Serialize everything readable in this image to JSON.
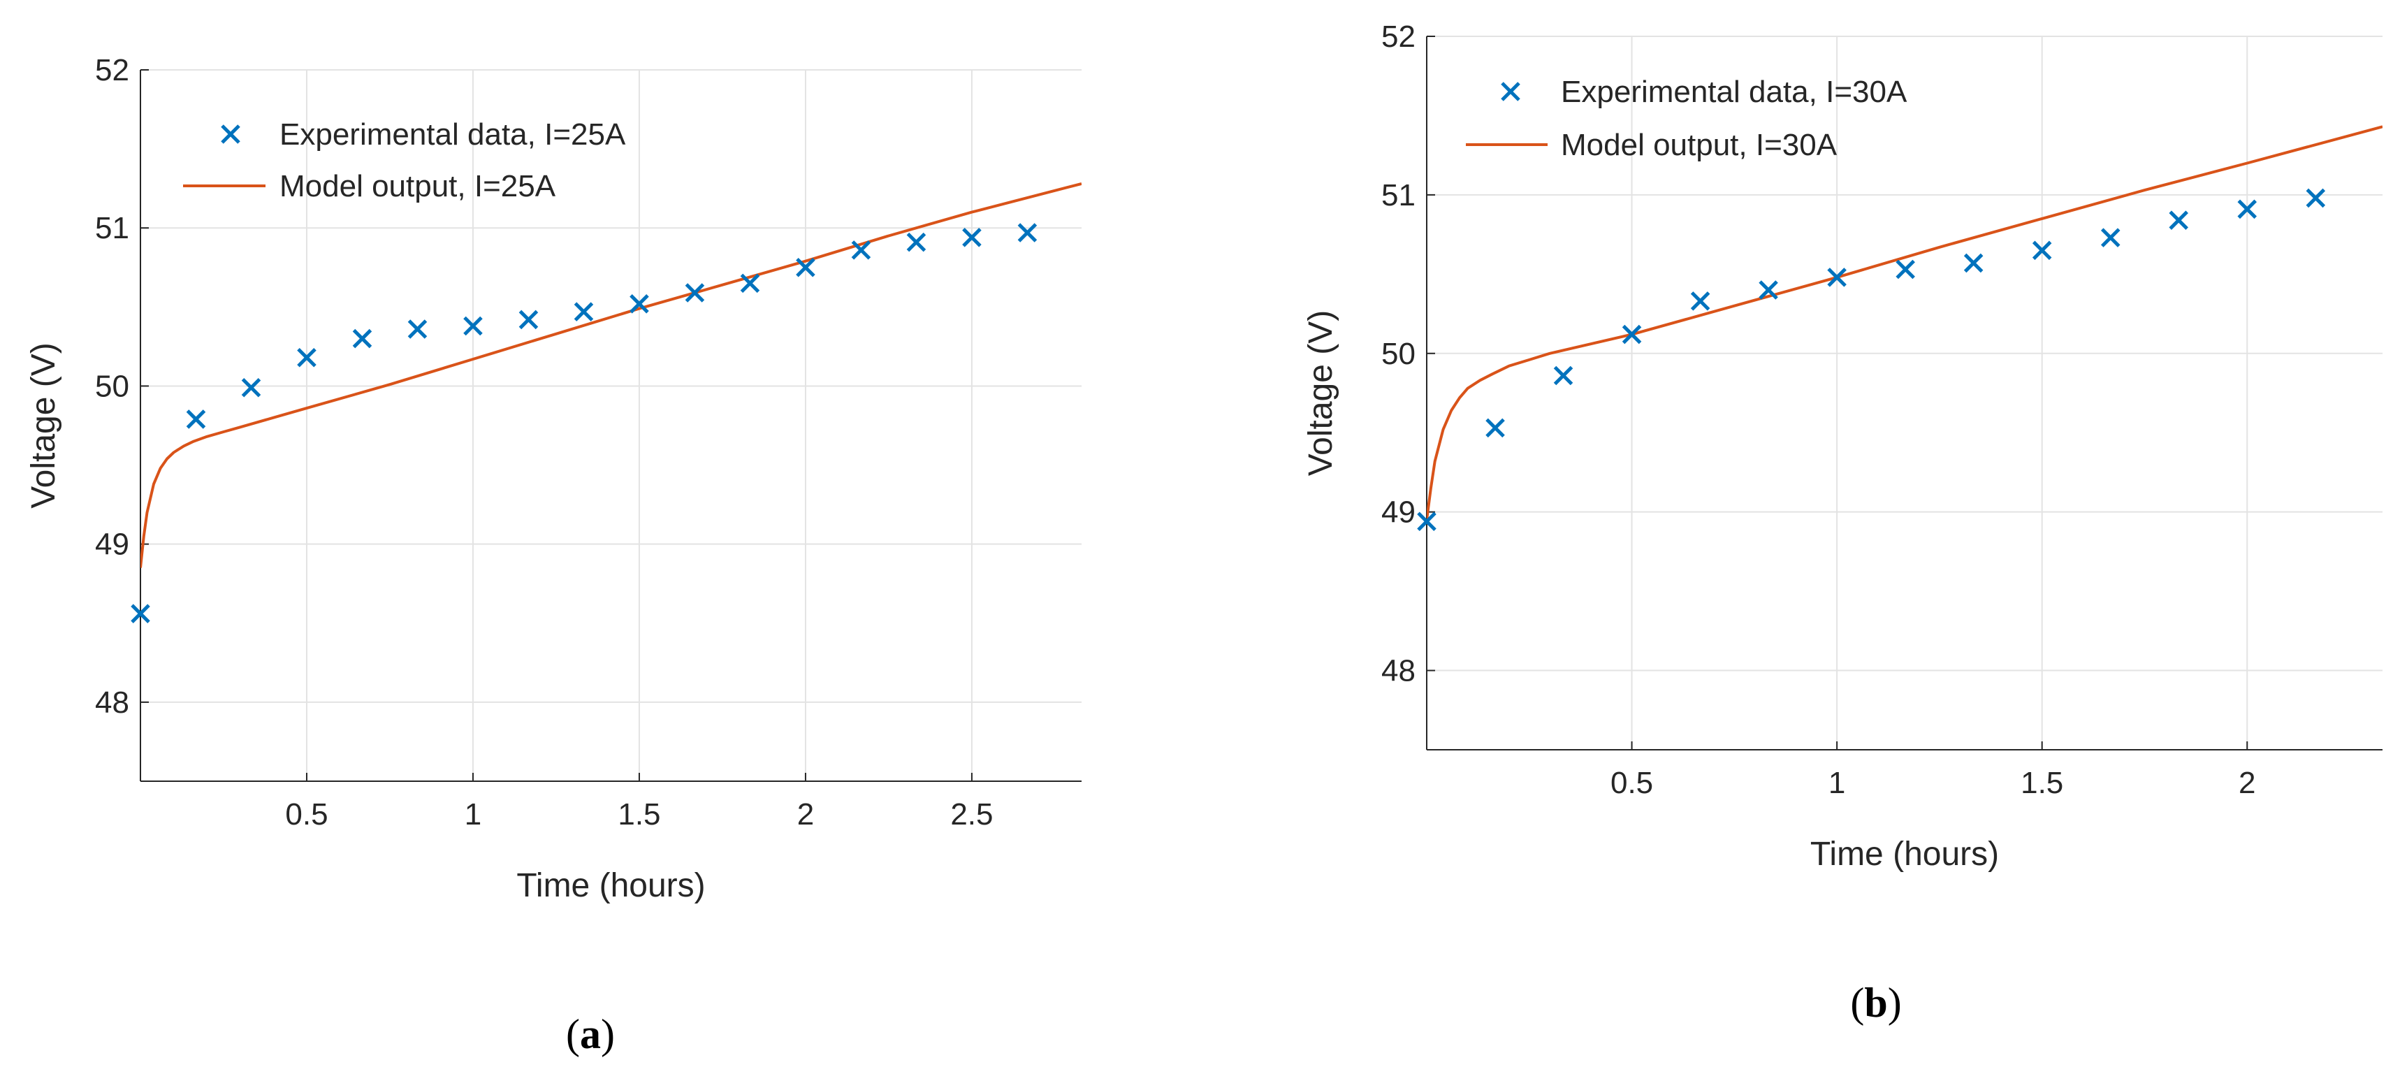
{
  "chart_data": [
    {
      "type": "line",
      "panel_label_prefix": "(",
      "panel_label": "a",
      "panel_label_suffix": ")",
      "xlabel": "Time (hours)",
      "ylabel": "Voltage (V)",
      "xlim": [
        0,
        2.83
      ],
      "ylim": [
        47.5,
        52
      ],
      "xticks": [
        0.5,
        1,
        1.5,
        2,
        2.5
      ],
      "xtick_labels": [
        "0.5",
        "1",
        "1.5",
        "2",
        "2.5"
      ],
      "yticks": [
        48,
        49,
        50,
        51,
        52
      ],
      "ytick_labels": [
        "48",
        "49",
        "50",
        "51",
        "52"
      ],
      "grid": true,
      "legend_position": "top-left",
      "colors": {
        "experimental": "#0072BD",
        "model": "#D95319"
      },
      "series": [
        {
          "name": "Experimental data, I=25A",
          "kind": "markers",
          "x": [
            0,
            0.167,
            0.333,
            0.5,
            0.667,
            0.833,
            1.0,
            1.167,
            1.333,
            1.5,
            1.667,
            1.833,
            2.0,
            2.167,
            2.333,
            2.5,
            2.667
          ],
          "y": [
            48.56,
            49.79,
            49.99,
            50.18,
            50.3,
            50.36,
            50.38,
            50.42,
            50.47,
            50.52,
            50.59,
            50.65,
            50.75,
            50.86,
            50.91,
            50.94,
            50.97
          ]
        },
        {
          "name": "Model output, I=25A",
          "kind": "line",
          "x": [
            0,
            0.01,
            0.02,
            0.04,
            0.06,
            0.08,
            0.1,
            0.13,
            0.16,
            0.2,
            0.25,
            0.3,
            0.4,
            0.5,
            0.75,
            1.0,
            1.25,
            1.5,
            1.75,
            2.0,
            2.25,
            2.5,
            2.83
          ],
          "y": [
            48.85,
            49.05,
            49.2,
            49.38,
            49.48,
            49.54,
            49.58,
            49.62,
            49.65,
            49.68,
            49.71,
            49.74,
            49.8,
            49.86,
            50.01,
            50.17,
            50.33,
            50.49,
            50.64,
            50.79,
            50.95,
            51.1,
            51.28
          ]
        }
      ]
    },
    {
      "type": "line",
      "panel_label_prefix": "(",
      "panel_label": "b",
      "panel_label_suffix": ")",
      "xlabel": "Time (hours)",
      "ylabel": "Voltage (V)",
      "xlim": [
        0,
        2.33
      ],
      "ylim": [
        47.5,
        52
      ],
      "xticks": [
        0.5,
        1,
        1.5,
        2
      ],
      "xtick_labels": [
        "0.5",
        "1",
        "1.5",
        "2"
      ],
      "yticks": [
        48,
        49,
        50,
        51,
        52
      ],
      "ytick_labels": [
        "48",
        "49",
        "50",
        "51",
        "52"
      ],
      "grid": true,
      "legend_position": "top-left",
      "colors": {
        "experimental": "#0072BD",
        "model": "#D95319"
      },
      "series": [
        {
          "name": "Experimental data, I=30A",
          "kind": "markers",
          "x": [
            0,
            0.167,
            0.333,
            0.5,
            0.667,
            0.833,
            1.0,
            1.167,
            1.333,
            1.5,
            1.667,
            1.833,
            2.0,
            2.167
          ],
          "y": [
            48.94,
            49.53,
            49.86,
            50.12,
            50.33,
            50.4,
            50.48,
            50.53,
            50.57,
            50.65,
            50.73,
            50.84,
            50.91,
            50.98
          ]
        },
        {
          "name": "Model output, I=30A",
          "kind": "line",
          "x": [
            0,
            0.01,
            0.02,
            0.04,
            0.06,
            0.08,
            0.1,
            0.13,
            0.16,
            0.2,
            0.25,
            0.3,
            0.4,
            0.5,
            0.75,
            1.0,
            1.25,
            1.5,
            1.75,
            2.0,
            2.33
          ],
          "y": [
            48.95,
            49.15,
            49.32,
            49.52,
            49.64,
            49.72,
            49.78,
            49.83,
            49.87,
            49.92,
            49.96,
            50.0,
            50.06,
            50.12,
            50.3,
            50.48,
            50.67,
            50.85,
            51.03,
            51.2,
            51.43
          ]
        }
      ]
    }
  ]
}
